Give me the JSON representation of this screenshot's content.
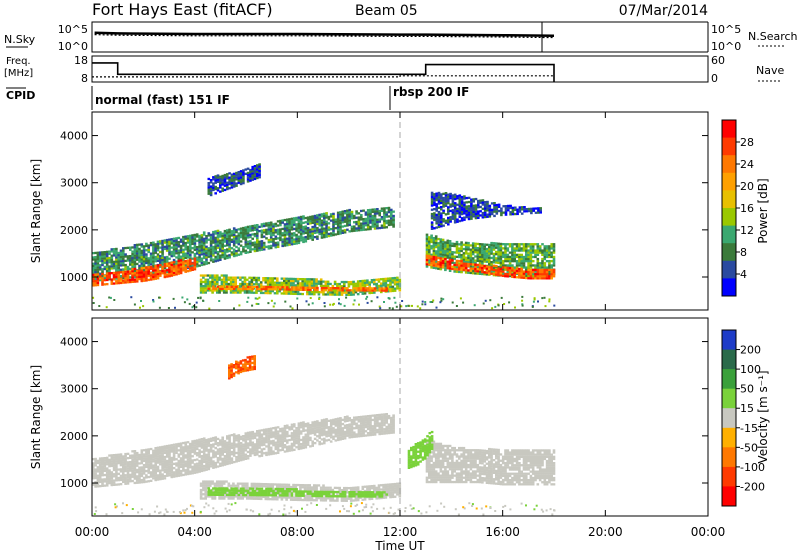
{
  "header": {
    "station": "Fort Hays East (fitACF)",
    "beam": "Beam 05",
    "date": "07/Mar/2014"
  },
  "top_panels": {
    "nsky_label": "N.Sky",
    "nsearch_label": "N.Search",
    "freq_label": "Freq.",
    "freq_unit": "[MHz]",
    "nave_label": "Nave",
    "cpid_label": "CPID",
    "noise_ticks_left": [
      "10^5",
      "10^0"
    ],
    "noise_ticks_right": [
      "10^5",
      "10^0"
    ],
    "freq_ticks": [
      "18",
      "8"
    ],
    "nave_ticks": [
      "60",
      "0"
    ]
  },
  "cpid_labels": [
    {
      "text": "normal (fast) 151 IF",
      "time": 0.0
    },
    {
      "text": "rbsp 200 IF",
      "time": 12.0
    }
  ],
  "power_colorbar": {
    "label": "Power [dB]",
    "ticks": [
      "28",
      "24",
      "20",
      "16",
      "12",
      "8",
      "4"
    ],
    "colors": [
      "#ff0000",
      "#ff3a00",
      "#ff7800",
      "#ffa000",
      "#e8c000",
      "#9ac800",
      "#3aa870",
      "#3a7a3a",
      "#2a4aa0",
      "#0000ff"
    ]
  },
  "velocity_colorbar": {
    "label": "Velocity [m s⁻¹]",
    "ticks": [
      "200",
      "100",
      "50",
      "15",
      "-15",
      "-50",
      "-100",
      "-200"
    ],
    "colors": [
      "#1e3cc8",
      "#2a6a4a",
      "#3aa03a",
      "#7ad23a",
      "#c8c8c0",
      "#ffb000",
      "#ff7800",
      "#ff3a00",
      "#ff0000"
    ]
  },
  "chart_data": [
    {
      "type": "line",
      "title": "N.Sky / N.Search",
      "x_range": [
        0,
        24
      ],
      "series": [
        {
          "name": "N.Sky",
          "x": [
            0.1,
            1,
            4,
            8,
            12,
            13,
            16,
            18
          ],
          "values": [
            3.2,
            3.1,
            3.0,
            3.0,
            2.9,
            2.9,
            2.8,
            2.7
          ]
        },
        {
          "name": "N.Search",
          "x": [
            0.1,
            1,
            4,
            8,
            12,
            13,
            16,
            18
          ],
          "values": [
            2.9,
            2.8,
            2.7,
            2.7,
            2.6,
            2.6,
            2.5,
            2.4
          ]
        }
      ]
    },
    {
      "type": "line",
      "title": "Freq. / Nave",
      "x_range": [
        0,
        24
      ],
      "series": [
        {
          "name": "Freq.",
          "x": [
            0,
            1,
            1,
            13,
            13,
            18,
            18
          ],
          "values": [
            16.7,
            16.7,
            11.5,
            11.5,
            15.9,
            15.9,
            8.0
          ]
        },
        {
          "name": "Nave",
          "x": [
            0,
            12,
            12,
            18
          ],
          "values": [
            14,
            14,
            17,
            17
          ]
        }
      ]
    },
    {
      "type": "heatmap",
      "title": "Power",
      "ylabel": "Slant Range [km]",
      "xlabel": "Time UT",
      "x_range": [
        0,
        24
      ],
      "y_range": [
        300,
        4500
      ],
      "x_ticks": [
        "00:00",
        "04:00",
        "08:00",
        "12:00",
        "16:00",
        "20:00",
        "00:00"
      ],
      "y_ticks": [
        1000,
        2000,
        3000,
        4000
      ],
      "bands": [
        {
          "x": [
            0,
            2,
            4,
            6,
            8,
            10,
            11.7
          ],
          "low": [
            900,
            1000,
            1200,
            1500,
            1700,
            1950,
            2050
          ],
          "high": [
            1500,
            1700,
            1900,
            2050,
            2250,
            2400,
            2450
          ],
          "value": 10
        },
        {
          "x": [
            0,
            1,
            2,
            3,
            4
          ],
          "low": [
            800,
            850,
            900,
            1000,
            1150
          ],
          "high": [
            1050,
            1100,
            1200,
            1300,
            1400
          ],
          "value": 26
        },
        {
          "x": [
            4.2,
            6,
            8,
            10,
            12
          ],
          "low": [
            650,
            650,
            620,
            600,
            700
          ],
          "high": [
            1050,
            980,
            950,
            900,
            1000
          ],
          "value": 14
        },
        {
          "x": [
            4.5,
            7,
            9,
            11.5
          ],
          "low": [
            730,
            720,
            700,
            690
          ],
          "high": [
            820,
            800,
            780,
            760
          ],
          "value": 24
        },
        {
          "x": [
            13,
            14,
            15,
            16,
            17,
            18
          ],
          "low": [
            1200,
            1100,
            1050,
            1000,
            1000,
            1000
          ],
          "high": [
            1900,
            1750,
            1700,
            1700,
            1700,
            1700
          ],
          "value": 12
        },
        {
          "x": [
            13,
            14,
            15,
            16,
            17,
            18
          ],
          "low": [
            1250,
            1150,
            1100,
            1000,
            950,
            950
          ],
          "high": [
            1450,
            1350,
            1250,
            1200,
            1150,
            1150
          ],
          "value": 26
        },
        {
          "x": [
            4.5,
            5.5,
            6.5
          ],
          "low": [
            2700,
            2900,
            3100
          ],
          "high": [
            3100,
            3200,
            3400
          ],
          "value": 6
        },
        {
          "x": [
            13.2,
            14.5,
            16,
            17.5
          ],
          "low": [
            2000,
            2200,
            2300,
            2350
          ],
          "high": [
            2800,
            2700,
            2500,
            2450
          ],
          "value": 6
        }
      ]
    },
    {
      "type": "heatmap",
      "title": "Velocity",
      "ylabel": "Slant Range [km]",
      "xlabel": "Time UT",
      "x_range": [
        0,
        24
      ],
      "y_range": [
        300,
        4500
      ],
      "x_ticks": [
        "00:00",
        "04:00",
        "08:00",
        "12:00",
        "16:00",
        "20:00",
        "00:00"
      ],
      "y_ticks": [
        1000,
        2000,
        3000,
        4000
      ],
      "bands": [
        {
          "x": [
            0,
            2,
            4,
            6,
            8,
            10,
            11.7
          ],
          "low": [
            900,
            1000,
            1200,
            1500,
            1700,
            1950,
            2050
          ],
          "high": [
            1500,
            1700,
            1900,
            2050,
            2250,
            2400,
            2450
          ],
          "value": 0
        },
        {
          "x": [
            4.2,
            6,
            8,
            10,
            12
          ],
          "low": [
            650,
            650,
            620,
            600,
            700
          ],
          "high": [
            1050,
            980,
            950,
            900,
            1000
          ],
          "value": 0
        },
        {
          "x": [
            4.5,
            7,
            9,
            11.5
          ],
          "low": [
            730,
            720,
            700,
            690
          ],
          "high": [
            880,
            860,
            830,
            800
          ],
          "value": 30
        },
        {
          "x": [
            13,
            14,
            15,
            16,
            17,
            18
          ],
          "low": [
            1000,
            1000,
            1000,
            950,
            950,
            950
          ],
          "high": [
            1900,
            1750,
            1700,
            1700,
            1700,
            1700
          ],
          "value": 0
        },
        {
          "x": [
            12.3,
            12.8,
            13.2
          ],
          "low": [
            1300,
            1400,
            1700
          ],
          "high": [
            1700,
            1900,
            2100
          ],
          "value": 30
        },
        {
          "x": [
            5.3,
            5.8,
            6.3
          ],
          "low": [
            3200,
            3350,
            3400
          ],
          "high": [
            3500,
            3600,
            3700
          ],
          "value": -100
        }
      ]
    }
  ]
}
